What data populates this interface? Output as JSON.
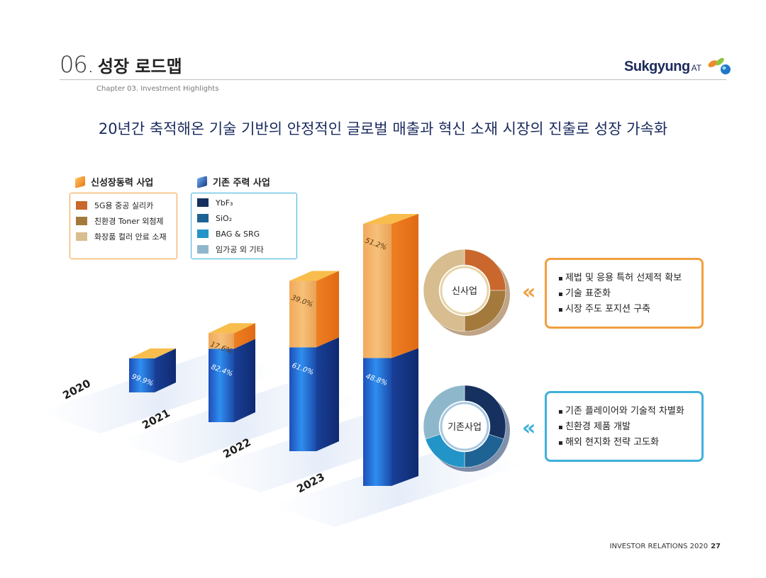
{
  "header": {
    "section_number": "06.",
    "section_title": "성장 로드맵",
    "subtitle": "Chapter 03. Investment Highlights",
    "logo_text": "Sukgyung",
    "logo_suffix": "AT"
  },
  "headline": "20년간 축적해온 기술 기반의 안정적인 글로벌 매출과 혁신 소재 시장의 진출로 성장 가속화",
  "legend": {
    "new_business": {
      "title": "신성장동력 사업",
      "accent": "#f08a2a",
      "items": [
        {
          "label": "5G용 중공 실리카",
          "color": "#c9672c"
        },
        {
          "label": "친환경 Toner 외첨제",
          "color": "#a47a3c"
        },
        {
          "label": "화장품 컬러 안료 소재",
          "color": "#d7bd8f"
        }
      ]
    },
    "core_business": {
      "title": "기존 주력 사업",
      "accent": "#2a63b8",
      "items": [
        {
          "label": "YbF₃",
          "color": "#16305f"
        },
        {
          "label": "SiO₂",
          "color": "#1f6394"
        },
        {
          "label": "BAG & SRG",
          "color": "#2394c8"
        },
        {
          "label": "임가공 외 기타",
          "color": "#8fb7cc"
        }
      ]
    }
  },
  "chart_data": {
    "type": "bar",
    "stacked": true,
    "categories": [
      "2020",
      "2021",
      "2022",
      "2023"
    ],
    "series": [
      {
        "name": "기존 주력 사업",
        "values": [
          99.9,
          82.4,
          61.0,
          48.8
        ],
        "labels": [
          "99.9%",
          "82.4%",
          "61.0%",
          "48.8%"
        ],
        "color": "#1f6fd0"
      },
      {
        "name": "신성장동력 사업",
        "values": [
          0.1,
          17.6,
          39.0,
          51.2
        ],
        "labels": [
          "",
          "17.6%",
          "39.0%",
          "51.2%"
        ],
        "color": "#f08a2a"
      }
    ],
    "totals_relative": [
      0.13,
      0.34,
      0.65,
      1.0
    ]
  },
  "donuts": [
    {
      "label": "신사업",
      "colors": [
        "#c9672c",
        "#a47a3c",
        "#d7bd8f"
      ],
      "shares": [
        0.25,
        0.25,
        0.5
      ]
    },
    {
      "label": "기존사업",
      "colors": [
        "#16305f",
        "#1f6394",
        "#2394c8",
        "#8fb7cc"
      ],
      "shares": [
        0.3,
        0.2,
        0.2,
        0.3
      ]
    }
  ],
  "callouts": {
    "new": {
      "color": "#f0a040",
      "items": [
        "제법 및 응용 특허 선제적 확보",
        "기술 표준화",
        "시장 주도 포지션 구축"
      ]
    },
    "core": {
      "color": "#3fb0dc",
      "items": [
        "기존 플레이어와 기술적 차별화",
        "친환경 제품 개발",
        "해외 현지화 전략 고도화"
      ]
    }
  },
  "footer": {
    "text": "INVESTOR RELATIONS 2020",
    "page": "27"
  }
}
